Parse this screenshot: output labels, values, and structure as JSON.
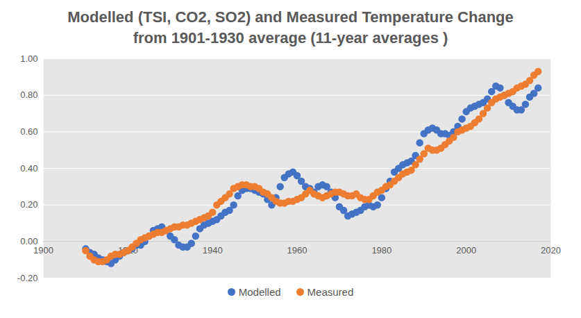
{
  "chart_data": {
    "type": "scatter",
    "title": "Modelled (TSI, CO2, SO2) and Measured Temperature Change from 1901-1930 average (11-year averages )",
    "x": [
      1910,
      1911,
      1912,
      1913,
      1914,
      1915,
      1916,
      1917,
      1918,
      1919,
      1920,
      1921,
      1922,
      1923,
      1924,
      1925,
      1926,
      1927,
      1928,
      1929,
      1930,
      1931,
      1932,
      1933,
      1934,
      1935,
      1936,
      1937,
      1938,
      1939,
      1940,
      1941,
      1942,
      1943,
      1944,
      1945,
      1946,
      1947,
      1948,
      1949,
      1950,
      1951,
      1952,
      1953,
      1954,
      1955,
      1956,
      1957,
      1958,
      1959,
      1960,
      1961,
      1962,
      1963,
      1964,
      1965,
      1966,
      1967,
      1968,
      1969,
      1970,
      1971,
      1972,
      1973,
      1974,
      1975,
      1976,
      1977,
      1978,
      1979,
      1980,
      1981,
      1982,
      1983,
      1984,
      1985,
      1986,
      1987,
      1988,
      1989,
      1990,
      1991,
      1992,
      1993,
      1994,
      1995,
      1996,
      1997,
      1998,
      1999,
      2000,
      2001,
      2002,
      2003,
      2004,
      2005,
      2006,
      2007,
      2008,
      2009,
      2010,
      2011,
      2012,
      2013,
      2014,
      2015,
      2016,
      2017
    ],
    "series": [
      {
        "name": "Modelled",
        "color": "#4472c4",
        "marker": "circle",
        "values": [
          -0.04,
          -0.06,
          -0.07,
          -0.09,
          -0.1,
          -0.11,
          -0.12,
          -0.1,
          -0.08,
          -0.06,
          -0.05,
          -0.04,
          -0.02,
          -0.02,
          0,
          0.03,
          0.06,
          0.07,
          0.08,
          0.06,
          0.03,
          0.01,
          -0.02,
          -0.03,
          -0.03,
          -0.01,
          0.03,
          0.07,
          0.09,
          0.1,
          0.11,
          0.12,
          0.14,
          0.16,
          0.17,
          0.2,
          0.25,
          0.28,
          0.29,
          0.29,
          0.28,
          0.27,
          0.26,
          0.23,
          0.2,
          0.24,
          0.3,
          0.35,
          0.37,
          0.38,
          0.36,
          0.33,
          0.3,
          0.29,
          0.27,
          0.3,
          0.31,
          0.3,
          0.27,
          0.24,
          0.19,
          0.17,
          0.14,
          0.15,
          0.16,
          0.17,
          0.19,
          0.2,
          0.19,
          0.2,
          0.24,
          0.29,
          0.33,
          0.38,
          0.4,
          0.42,
          0.43,
          0.44,
          0.47,
          0.54,
          0.59,
          0.61,
          0.62,
          0.61,
          0.59,
          0.59,
          0.58,
          0.6,
          0.63,
          0.67,
          0.71,
          0.73,
          0.74,
          0.75,
          0.76,
          0.78,
          0.82,
          0.85,
          0.84,
          0.8,
          0.76,
          0.74,
          0.72,
          0.72,
          0.75,
          0.79,
          0.81,
          0.84
        ]
      },
      {
        "name": "Measured",
        "color": "#ed7d31",
        "marker": "circle",
        "values": [
          -0.05,
          -0.08,
          -0.1,
          -0.11,
          -0.11,
          -0.1,
          -0.08,
          -0.07,
          -0.07,
          -0.06,
          -0.05,
          -0.03,
          -0.01,
          0.01,
          0.02,
          0.03,
          0.04,
          0.05,
          0.05,
          0.06,
          0.07,
          0.08,
          0.08,
          0.09,
          0.09,
          0.1,
          0.11,
          0.12,
          0.13,
          0.14,
          0.16,
          0.2,
          0.22,
          0.24,
          0.26,
          0.29,
          0.3,
          0.31,
          0.31,
          0.3,
          0.3,
          0.29,
          0.27,
          0.26,
          0.24,
          0.22,
          0.21,
          0.21,
          0.22,
          0.22,
          0.23,
          0.24,
          0.26,
          0.28,
          0.26,
          0.25,
          0.24,
          0.25,
          0.26,
          0.27,
          0.27,
          0.26,
          0.25,
          0.25,
          0.26,
          0.24,
          0.23,
          0.23,
          0.25,
          0.27,
          0.28,
          0.3,
          0.31,
          0.33,
          0.35,
          0.37,
          0.38,
          0.39,
          0.42,
          0.45,
          0.48,
          0.51,
          0.5,
          0.5,
          0.51,
          0.53,
          0.55,
          0.57,
          0.6,
          0.61,
          0.62,
          0.63,
          0.65,
          0.67,
          0.7,
          0.73,
          0.76,
          0.78,
          0.79,
          0.8,
          0.81,
          0.82,
          0.84,
          0.85,
          0.86,
          0.88,
          0.91,
          0.93
        ]
      }
    ],
    "xlim": [
      1900,
      2020
    ],
    "xticks": [
      1900,
      1920,
      1940,
      1960,
      1980,
      2000,
      2020
    ],
    "ylim": [
      -0.2,
      1
    ],
    "yticks": [
      {
        "value": -0.2,
        "label": "-0.20"
      },
      {
        "value": 0,
        "label": "0.00"
      },
      {
        "value": 0.2,
        "label": "0.20"
      },
      {
        "value": 0.4,
        "label": "0.40"
      },
      {
        "value": 0.6,
        "label": "0.60"
      },
      {
        "value": 0.8,
        "label": "0.80"
      },
      {
        "value": 1,
        "label": "1.00"
      }
    ],
    "grid": true,
    "legend": "bottom"
  }
}
